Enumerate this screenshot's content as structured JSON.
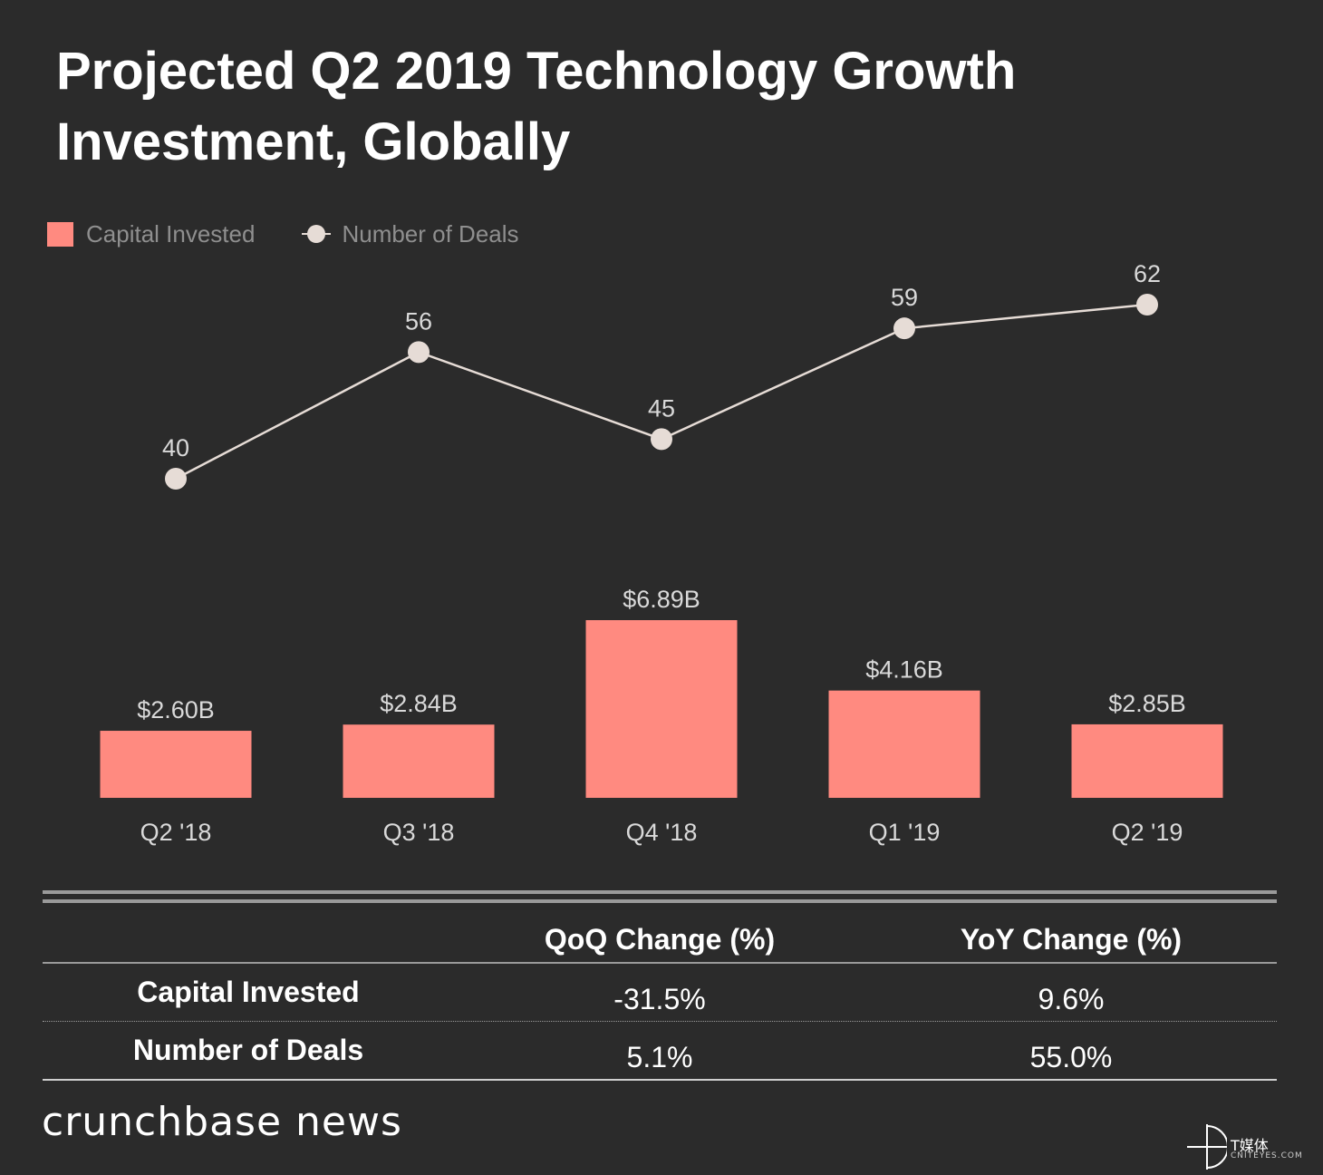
{
  "title": {
    "line1": "Projected Q2 2019 Technology Growth",
    "line2": "Investment, Globally"
  },
  "legend": {
    "capital_label": "Capital Invested",
    "deals_label": "Number of Deals"
  },
  "colors": {
    "background": "#2b2b2b",
    "bar": "#ff8a80",
    "line": "#e6dcd6",
    "muted_text": "#8f8f8f",
    "label_text": "#d9d9d9"
  },
  "chart_data": {
    "type": "bar",
    "categories": [
      "Q2 '18",
      "Q3 '18",
      "Q4 '18",
      "Q1 '19",
      "Q2 '19"
    ],
    "series": [
      {
        "name": "Capital Invested",
        "type": "bar",
        "values": [
          2.6,
          2.84,
          6.89,
          4.16,
          2.85
        ],
        "labels": [
          "$2.60B",
          "$2.84B",
          "$6.89B",
          "$4.16B",
          "$2.85B"
        ],
        "unit": "$B"
      },
      {
        "name": "Number of Deals",
        "type": "line",
        "values": [
          40,
          56,
          45,
          59,
          62
        ],
        "labels": [
          "40",
          "56",
          "45",
          "59",
          "62"
        ]
      }
    ],
    "title": "Projected Q2 2019 Technology Growth Investment, Globally",
    "xlabel": "",
    "ylabel": "",
    "grid": false,
    "legend_position": "top-left"
  },
  "table": {
    "headers": [
      "",
      "QoQ Change (%)",
      "YoY Change (%)"
    ],
    "rows": [
      {
        "label": "Capital Invested",
        "qoq": "-31.5%",
        "yoy": "9.6%"
      },
      {
        "label": "Number of Deals",
        "qoq": "5.1%",
        "yoy": "55.0%"
      }
    ]
  },
  "footer": {
    "brand": "crunchbase news",
    "watermark_text": "T媒体",
    "watermark_sub": "CNITEYES.COM"
  }
}
